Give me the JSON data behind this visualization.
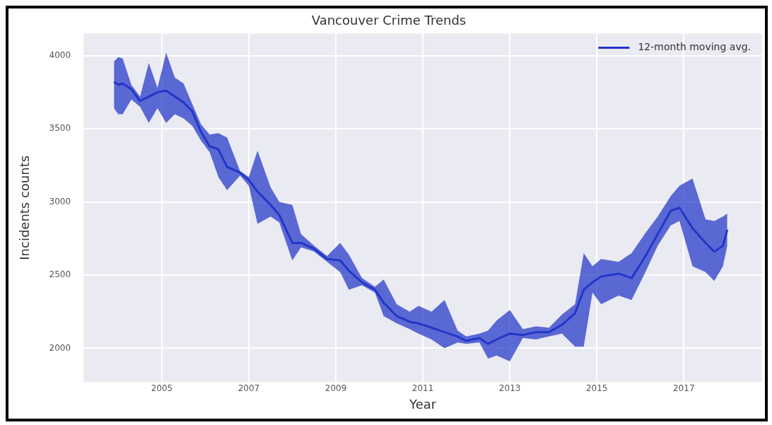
{
  "chart_data": {
    "type": "line",
    "title": "Vancouver Crime Trends",
    "xlabel": "Year",
    "ylabel": "Incidents counts",
    "xlim": [
      2003.2,
      2018.8
    ],
    "xticks": [
      2005,
      2007,
      2009,
      2011,
      2013,
      2015,
      2017
    ],
    "ylim": [
      1770,
      4150
    ],
    "yticks": [
      2000,
      2500,
      3000,
      3500,
      4000
    ],
    "grid": true,
    "legend": "top right",
    "marker": "none",
    "line_style": "solid",
    "series": [
      {
        "name": "12-month moving avg.",
        "color": "#2236c8",
        "x": [
          2003.9,
          2004.0,
          2004.1,
          2004.3,
          2004.5,
          2004.7,
          2004.9,
          2005.1,
          2005.3,
          2005.5,
          2005.7,
          2005.9,
          2006.1,
          2006.3,
          2006.5,
          2006.8,
          2007.0,
          2007.2,
          2007.5,
          2007.7,
          2008.0,
          2008.2,
          2008.5,
          2008.8,
          2009.1,
          2009.3,
          2009.6,
          2009.9,
          2010.1,
          2010.4,
          2010.7,
          2010.9,
          2011.2,
          2011.5,
          2011.8,
          2012.0,
          2012.3,
          2012.5,
          2012.7,
          2013.0,
          2013.3,
          2013.6,
          2013.9,
          2014.2,
          2014.5,
          2014.7,
          2014.9,
          2015.1,
          2015.5,
          2015.8,
          2016.1,
          2016.4,
          2016.7,
          2016.9,
          2017.2,
          2017.5,
          2017.7,
          2017.9,
          2018.0
        ],
        "values": [
          3820,
          3800,
          3810,
          3770,
          3690,
          3720,
          3750,
          3760,
          3720,
          3680,
          3620,
          3480,
          3380,
          3360,
          3240,
          3200,
          3150,
          3070,
          2980,
          2910,
          2720,
          2720,
          2680,
          2610,
          2600,
          2530,
          2450,
          2400,
          2310,
          2220,
          2180,
          2170,
          2140,
          2110,
          2080,
          2050,
          2070,
          2030,
          2060,
          2100,
          2090,
          2110,
          2110,
          2160,
          2240,
          2400,
          2450,
          2490,
          2510,
          2480,
          2620,
          2780,
          2940,
          2960,
          2820,
          2720,
          2660,
          2700,
          2810
        ],
        "lower": [
          3640,
          3600,
          3600,
          3700,
          3650,
          3540,
          3640,
          3540,
          3600,
          3570,
          3520,
          3420,
          3340,
          3170,
          3080,
          3180,
          3110,
          2850,
          2900,
          2860,
          2600,
          2690,
          2660,
          2590,
          2520,
          2400,
          2430,
          2380,
          2220,
          2170,
          2130,
          2100,
          2060,
          2000,
          2040,
          2030,
          2040,
          1930,
          1950,
          1910,
          2070,
          2060,
          2080,
          2100,
          2010,
          2010,
          2380,
          2300,
          2360,
          2330,
          2510,
          2700,
          2840,
          2870,
          2560,
          2520,
          2460,
          2560,
          2700
        ],
        "upper": [
          3960,
          3990,
          3980,
          3800,
          3720,
          3950,
          3780,
          4020,
          3850,
          3810,
          3670,
          3530,
          3460,
          3470,
          3440,
          3210,
          3170,
          3350,
          3100,
          3000,
          2980,
          2780,
          2700,
          2630,
          2720,
          2640,
          2480,
          2420,
          2470,
          2300,
          2250,
          2290,
          2250,
          2330,
          2120,
          2080,
          2100,
          2120,
          2190,
          2260,
          2130,
          2150,
          2140,
          2230,
          2300,
          2650,
          2560,
          2610,
          2590,
          2650,
          2780,
          2900,
          3040,
          3110,
          3160,
          2880,
          2870,
          2900,
          2920
        ]
      }
    ]
  }
}
